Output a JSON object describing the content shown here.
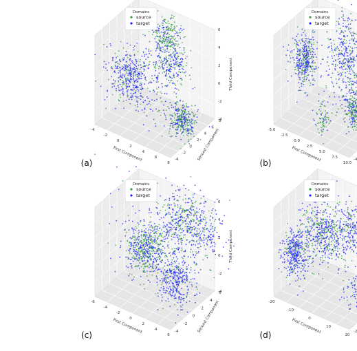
{
  "chart_data": [
    {
      "type": "scatter",
      "panel": "(a)",
      "xlabel": "First Component",
      "ylabel": "Second Component",
      "zlabel": "Third Component",
      "x_ticks": [
        "-4",
        "-2",
        "0",
        "2",
        "4",
        "6",
        "8"
      ],
      "y_ticks": [
        "-4",
        "-2",
        "0",
        "2",
        "4",
        "6",
        "8"
      ],
      "z_ticks": [
        "-4",
        "-2",
        "0",
        "2",
        "4",
        "6"
      ],
      "legend": {
        "title": "Domains",
        "entries": [
          "source",
          "target"
        ],
        "position": "top-right"
      },
      "colors": {
        "source": "#2ca02c",
        "target": "#1f1fff"
      },
      "clusters": [
        {
          "center": [
            -2,
            2,
            0
          ],
          "spread": [
            1.5,
            1.5,
            1.3
          ],
          "source_points": 80,
          "target_points": 260
        },
        {
          "center": [
            1.5,
            6,
            4
          ],
          "spread": [
            1.1,
            1.1,
            1.0
          ],
          "source_points": 170,
          "target_points": 90
        },
        {
          "center": [
            3,
            5,
            1.5
          ],
          "spread": [
            1.0,
            1.0,
            0.9
          ],
          "source_points": 70,
          "target_points": 110
        },
        {
          "center": [
            7,
            1,
            -2
          ],
          "spread": [
            0.9,
            0.9,
            0.8
          ],
          "source_points": 170,
          "target_points": 140
        },
        {
          "center": [
            1,
            2,
            0
          ],
          "spread": [
            2.8,
            2.6,
            2.0
          ],
          "source_points": 60,
          "target_points": 150
        }
      ]
    },
    {
      "type": "scatter",
      "panel": "(b)",
      "xlabel": "First Component",
      "ylabel": "Second Component",
      "zlabel": "Third Component",
      "x_ticks": [
        "-5.0",
        "-2.5",
        "0.0",
        "2.5",
        "5.0",
        "7.5",
        "10.0"
      ],
      "y_ticks": [
        "-4",
        "-2",
        "0",
        "2",
        "4",
        "6",
        "8"
      ],
      "z_ticks": [
        "-4",
        "-2",
        "0",
        "2",
        "4",
        "6"
      ],
      "legend": {
        "title": "Domains",
        "entries": [
          "source",
          "target"
        ],
        "position": "top-right"
      },
      "colors": {
        "source": "#2ca02c",
        "target": "#1f1fff"
      },
      "clusters": [
        {
          "center": [
            -4,
            3,
            1
          ],
          "spread": [
            1.0,
            1.1,
            1.4
          ],
          "source_points": 130,
          "target_points": 260
        },
        {
          "center": [
            2,
            6,
            2.5
          ],
          "spread": [
            1.4,
            1.3,
            2.0
          ],
          "source_points": 110,
          "target_points": 200
        },
        {
          "center": [
            2,
            0,
            -3
          ],
          "spread": [
            0.6,
            0.6,
            0.9
          ],
          "source_points": 50,
          "target_points": 20
        },
        {
          "center": [
            7,
            2,
            -1.5
          ],
          "spread": [
            1.0,
            1.0,
            1.0
          ],
          "source_points": 170,
          "target_points": 150
        },
        {
          "center": [
            4,
            4,
            0
          ],
          "spread": [
            2.8,
            2.5,
            2.2
          ],
          "source_points": 40,
          "target_points": 140
        }
      ]
    },
    {
      "type": "scatter",
      "panel": "(c)",
      "xlabel": "First Component",
      "ylabel": "Second Component",
      "zlabel": "Third Component",
      "x_ticks": [
        "-6",
        "-4",
        "-2",
        "0",
        "2",
        "4",
        "6"
      ],
      "y_ticks": [
        "-4",
        "-2",
        "0",
        "2",
        "4",
        "6"
      ],
      "z_ticks": [
        "-4",
        "-2",
        "0",
        "2",
        "4",
        "6"
      ],
      "legend": {
        "title": "Domains",
        "entries": [
          "source",
          "target"
        ],
        "position": "top-right"
      },
      "colors": {
        "source": "#2ca02c",
        "target": "#1f1fff"
      },
      "clusters": [
        {
          "center": [
            -2,
            2,
            0
          ],
          "spread": [
            1.2,
            1.3,
            1.3
          ],
          "source_points": 260,
          "target_points": 220
        },
        {
          "center": [
            2,
            5,
            3
          ],
          "spread": [
            1.6,
            1.6,
            1.5
          ],
          "source_points": 160,
          "target_points": 200
        },
        {
          "center": [
            3.5,
            1,
            -1.5
          ],
          "spread": [
            1.2,
            1.2,
            1.2
          ],
          "source_points": 50,
          "target_points": 260
        },
        {
          "center": [
            5,
            6,
            2
          ],
          "spread": [
            1.5,
            1.0,
            1.3
          ],
          "source_points": 15,
          "target_points": 100
        },
        {
          "center": [
            0,
            3,
            1
          ],
          "spread": [
            3.2,
            2.8,
            2.4
          ],
          "source_points": 60,
          "target_points": 200
        }
      ]
    },
    {
      "type": "scatter",
      "panel": "(d)",
      "xlabel": "First Component",
      "ylabel": "Second Component",
      "zlabel": "Third Component",
      "x_ticks": [
        "-20",
        "-10",
        "0",
        "10",
        "20"
      ],
      "y_ticks": [
        "-20",
        "-10",
        "0",
        "10",
        "20",
        "30"
      ],
      "z_ticks": [
        "-10",
        "0",
        "10",
        "20"
      ],
      "legend": {
        "title": "Domains",
        "entries": [
          "source",
          "target"
        ],
        "position": "top-right"
      },
      "colors": {
        "source": "#2ca02c",
        "target": "#1f1fff"
      },
      "clusters": [
        {
          "center": [
            -18,
            0,
            0
          ],
          "spread": [
            3.0,
            4.0,
            3.5
          ],
          "source_points": 80,
          "target_points": 300
        },
        {
          "center": [
            -6,
            8,
            8
          ],
          "spread": [
            6.0,
            6.0,
            4.5
          ],
          "source_points": 200,
          "target_points": 320
        },
        {
          "center": [
            8,
            14,
            12
          ],
          "spread": [
            4.0,
            5.0,
            4.0
          ],
          "source_points": 60,
          "target_points": 180
        },
        {
          "center": [
            22,
            2,
            -18
          ],
          "spread": [
            1.3,
            1.3,
            1.6
          ],
          "source_points": 60,
          "target_points": 40
        },
        {
          "center": [
            14,
            4,
            -6
          ],
          "spread": [
            4.0,
            4.0,
            5.0
          ],
          "source_points": 20,
          "target_points": 90
        }
      ]
    }
  ]
}
